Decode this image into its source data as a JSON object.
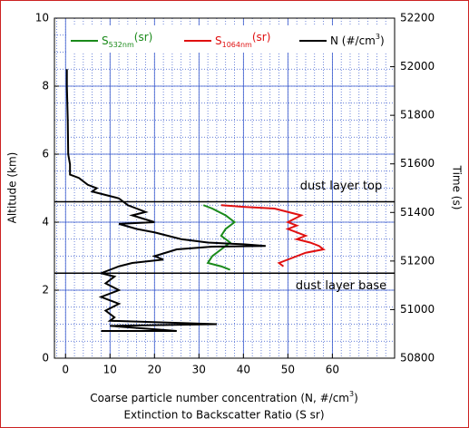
{
  "chart_data": {
    "type": "line",
    "xlabel": [
      "Coarse particle number concentration (N, #/cm",
      "3",
      ")"
    ],
    "xlabel2": "Extinction to Backscatter Ratio (S sr)",
    "ylabel": "Altitude (km)",
    "y2label": "Time (s)",
    "xlim": [
      -2.5,
      74
    ],
    "xticks": [
      0,
      10,
      20,
      30,
      40,
      50,
      60
    ],
    "ylim": [
      0,
      10
    ],
    "yticks": [
      0,
      2,
      4,
      6,
      8,
      10
    ],
    "y2lim": [
      50800,
      52200
    ],
    "y2ticks": [
      50800,
      51000,
      51200,
      51400,
      51600,
      51800,
      52000,
      52200
    ],
    "grid": true,
    "series": [
      {
        "name": "S",
        "name_sub": "532nm",
        "name_suffix": "(sr)",
        "color": "#1a8a1a",
        "x": [
          31,
          33,
          36,
          38,
          36,
          35,
          37,
          35,
          33,
          32,
          35,
          37
        ],
        "y": [
          4.5,
          4.4,
          4.2,
          4.0,
          3.8,
          3.6,
          3.4,
          3.2,
          3.0,
          2.8,
          2.7,
          2.6
        ]
      },
      {
        "name": "S",
        "name_sub": "1064nm",
        "name_suffix": "(sr)",
        "color": "#e01010",
        "x": [
          35,
          40,
          47,
          53,
          50,
          52,
          50,
          54,
          52,
          55,
          57,
          58,
          54,
          52,
          50,
          48,
          49
        ],
        "y": [
          4.5,
          4.45,
          4.4,
          4.2,
          4.0,
          3.9,
          3.8,
          3.6,
          3.5,
          3.4,
          3.3,
          3.2,
          3.1,
          3.0,
          2.9,
          2.8,
          2.7
        ]
      },
      {
        "name": "N (#/cm",
        "name_sup": "3",
        "name_suffix": ")",
        "color": "#000000",
        "x": [
          0.3,
          0.3,
          0.5,
          0.6,
          1,
          1,
          3,
          5,
          7,
          6,
          9,
          12,
          14,
          18,
          15,
          20,
          12,
          16,
          20,
          26,
          32,
          40,
          45,
          33,
          25,
          20,
          22,
          15,
          12,
          10,
          8,
          11,
          9,
          12,
          8,
          12,
          9,
          11,
          10,
          34,
          10,
          25,
          8
        ],
        "y": [
          8.5,
          8.0,
          7.0,
          6.0,
          5.7,
          5.4,
          5.3,
          5.1,
          5.0,
          4.9,
          4.8,
          4.7,
          4.5,
          4.3,
          4.2,
          4.0,
          3.95,
          3.8,
          3.7,
          3.5,
          3.4,
          3.35,
          3.3,
          3.28,
          3.2,
          3.0,
          2.9,
          2.8,
          2.7,
          2.6,
          2.5,
          2.4,
          2.2,
          2.0,
          1.8,
          1.6,
          1.4,
          1.2,
          1.1,
          1.0,
          0.95,
          0.8,
          0.8
        ]
      }
    ],
    "annotations": [
      {
        "text": "dust layer top",
        "y": 4.6,
        "position": "above"
      },
      {
        "text": "dust layer base",
        "y": 2.5,
        "position": "below"
      }
    ]
  }
}
